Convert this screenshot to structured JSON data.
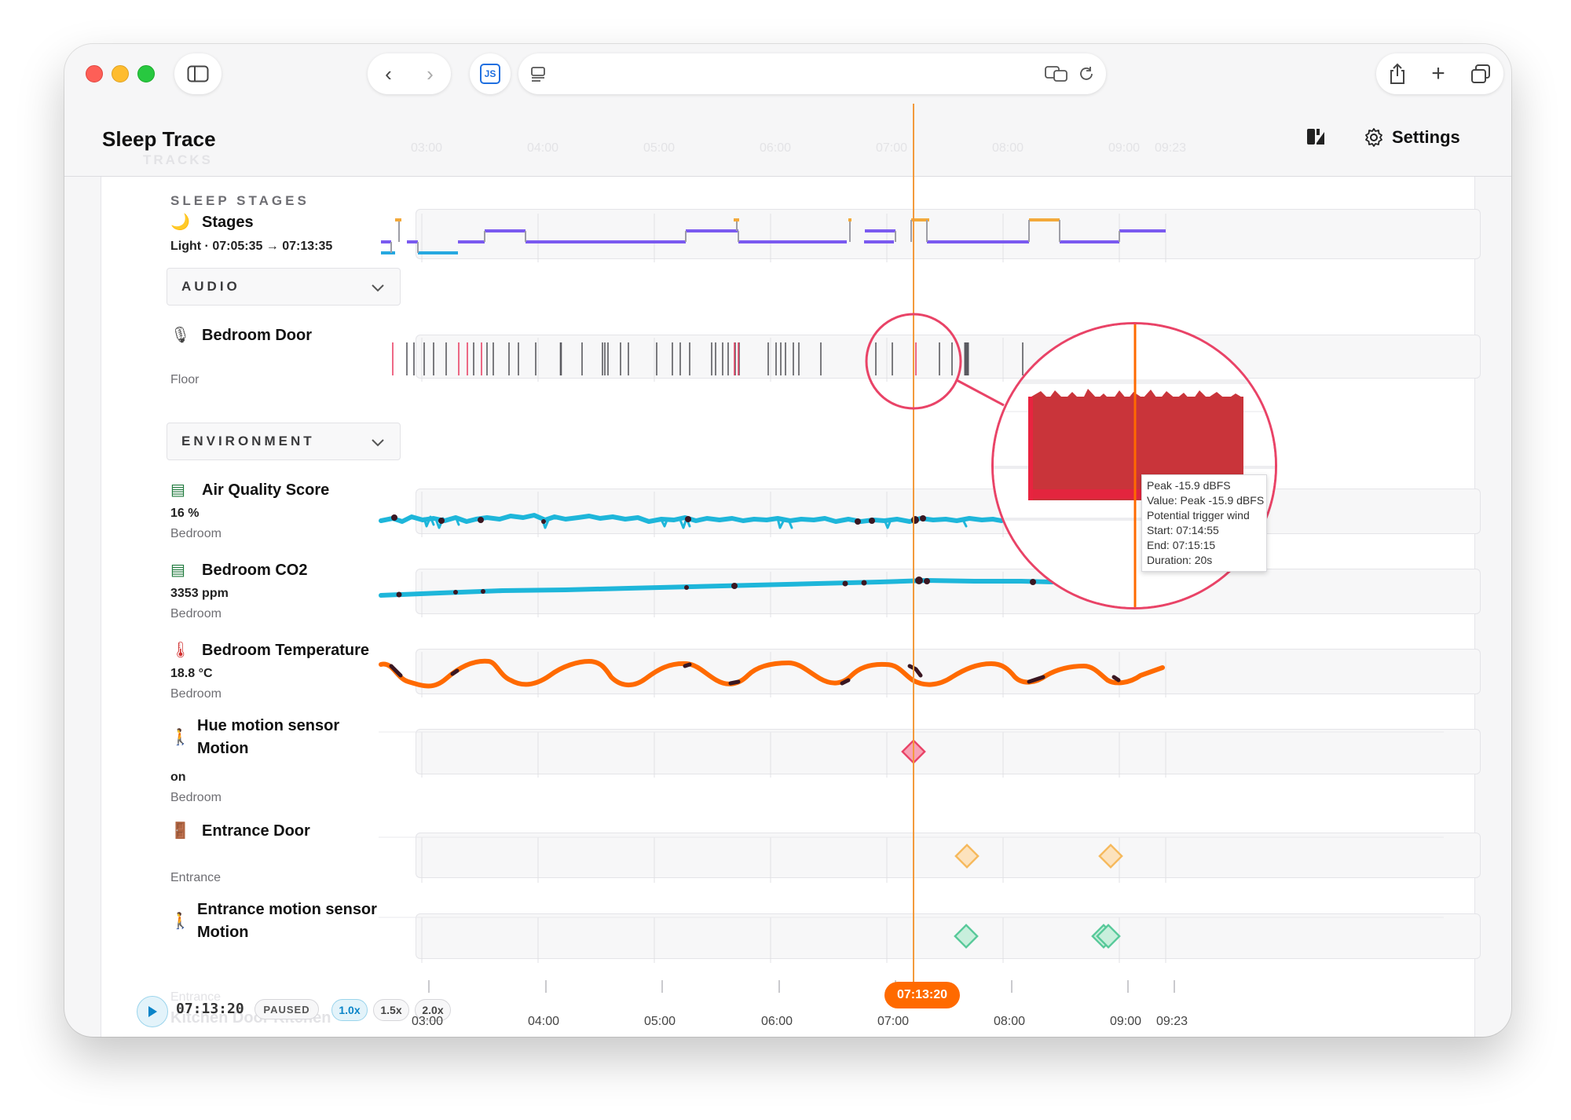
{
  "app": {
    "title": "Sleep Trace",
    "settings_label": "Settings"
  },
  "ghost": {
    "tracks_label": "TRACKS",
    "axis_ticks": [
      "03:00",
      "04:00",
      "05:00",
      "06:00",
      "07:00",
      "08:00",
      "09:00",
      "09:23"
    ],
    "bottom_label_1": "Entrance",
    "bottom_label_2": "Kitchen Door Kitchen"
  },
  "sections": {
    "sleep_stages": "SLEEP STAGES",
    "audio": "AUDIO",
    "environment": "ENVIRONMENT"
  },
  "tracks": {
    "stages": {
      "icon": "🌙",
      "name": "Stages",
      "value": "Light · 07:05:35 → 07:13:35"
    },
    "bedroom_door": {
      "icon": "🎙",
      "name": "Bedroom Door",
      "sub": "Floor"
    },
    "air_quality": {
      "icon": "▤",
      "name": "Air Quality Score",
      "value": "16 %",
      "sub": "Bedroom"
    },
    "co2": {
      "icon": "▤",
      "name": "Bedroom CO2",
      "value": "3353 ppm",
      "sub": "Bedroom"
    },
    "temperature": {
      "icon": "🌡",
      "name": "Bedroom Temperature",
      "value": "18.8 °C",
      "sub": "Bedroom"
    },
    "hue_motion": {
      "icon": "🚶",
      "name_line1": "Hue motion sensor",
      "name_line2": "Motion",
      "value": "on",
      "sub": "Bedroom"
    },
    "entrance_door": {
      "icon": "🚪",
      "name": "Entrance Door",
      "sub": "Entrance"
    },
    "entrance_motion": {
      "icon": "🚶",
      "name_line1": "Entrance motion sensor",
      "name_line2": "Motion"
    }
  },
  "tooltip": {
    "line1": "Peak -15.9 dBFS",
    "line2": "Value: Peak -15.9 dBFS",
    "line3": "Potential trigger wind",
    "line4": "Start: 07:14:55",
    "line5": "End: 07:15:15",
    "line6": "Duration: 20s"
  },
  "playback": {
    "time": "07:13:20",
    "state": "PAUSED",
    "speeds": [
      "1.0x",
      "1.5x",
      "2.0x"
    ],
    "cursor_time": "07:13:20"
  },
  "axis": {
    "ticks": [
      "03:00",
      "04:00",
      "05:00",
      "06:00",
      "07:00",
      "08:00",
      "09:00",
      "09:23"
    ]
  },
  "colors": {
    "cursor": "#f39a3c",
    "accent_orange": "#ff6a00",
    "deep_stage": "#26a8e0",
    "light_stage": "#7a5af0",
    "awake_stage": "#f3a93a",
    "aq_line": "#1eb6da",
    "temp_line": "#ff6a00",
    "highlight_pink": "#e94367",
    "hue_event": "#e94367",
    "door_event": "#f6b95c",
    "motion_event": "#58c99a"
  },
  "icons": {
    "sidebar": "sidebar-icon",
    "back": "chevron-left-icon",
    "forward": "chevron-right-icon",
    "extension": "js-extension-icon",
    "reader": "reader-icon",
    "translate": "translate-icon",
    "reload": "reload-icon",
    "share": "share-icon",
    "new_tab": "plus-icon",
    "tabs": "tabs-overview-icon",
    "theme": "theme-icon",
    "settings": "gear-icon"
  }
}
